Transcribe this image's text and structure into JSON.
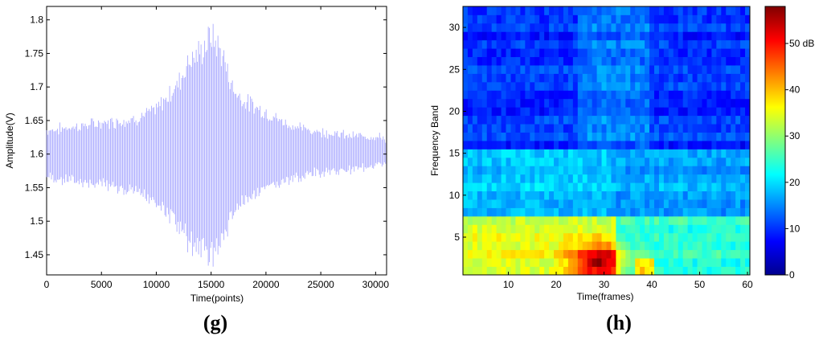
{
  "panels": {
    "g_label": "(g)",
    "h_label": "(h)"
  },
  "chart_data": [
    {
      "type": "line",
      "panel": "(g)",
      "xlabel": "Time(points)",
      "ylabel": "Amplitude(V)",
      "xlim": [
        0,
        31000
      ],
      "ylim": [
        1.42,
        1.82
      ],
      "xticks": [
        0,
        5000,
        10000,
        15000,
        20000,
        25000,
        30000
      ],
      "xtick_labels": [
        "0",
        "5000",
        "10000",
        "15000",
        "20000",
        "25000",
        "30000"
      ],
      "yticks": [
        1.45,
        1.5,
        1.55,
        1.6,
        1.65,
        1.7,
        1.75,
        1.8
      ],
      "ytick_labels": [
        "1.45",
        "1.5",
        "1.55",
        "1.6",
        "1.65",
        "1.7",
        "1.75",
        "1.8"
      ],
      "color": "#8080ff",
      "envelope": {
        "x": [
          0,
          2000,
          4000,
          6000,
          8000,
          10000,
          12000,
          13000,
          14000,
          15000,
          16000,
          17000,
          18000,
          20000,
          22000,
          24000,
          26000,
          28000,
          30000,
          31000
        ],
        "upper": [
          1.64,
          1.645,
          1.65,
          1.655,
          1.66,
          1.675,
          1.72,
          1.76,
          1.77,
          1.8,
          1.77,
          1.71,
          1.69,
          1.67,
          1.65,
          1.64,
          1.635,
          1.63,
          1.63,
          1.625
        ],
        "lower": [
          1.56,
          1.555,
          1.55,
          1.545,
          1.535,
          1.52,
          1.48,
          1.45,
          1.44,
          1.425,
          1.45,
          1.5,
          1.52,
          1.54,
          1.555,
          1.565,
          1.57,
          1.575,
          1.58,
          1.585
        ]
      }
    },
    {
      "type": "heatmap",
      "panel": "(h)",
      "xlabel": "Time(frames)",
      "ylabel": "Frequency Band",
      "xlim": [
        1,
        60
      ],
      "ylim": [
        1,
        32
      ],
      "xticks": [
        10,
        20,
        30,
        40,
        50,
        60
      ],
      "xtick_labels": [
        "10",
        "20",
        "30",
        "40",
        "50",
        "60"
      ],
      "yticks": [
        5,
        10,
        15,
        20,
        25,
        30
      ],
      "ytick_labels": [
        "5",
        "10",
        "15",
        "20",
        "25",
        "30"
      ],
      "colorbar": {
        "range": [
          0,
          58
        ],
        "ticks": [
          0,
          10,
          20,
          30,
          40,
          50
        ],
        "tick_labels": [
          "0",
          "10",
          "20",
          "30",
          "40",
          "50 dB"
        ],
        "colormap": "jet"
      },
      "grid": {
        "frames": 60,
        "bands": 32
      }
    }
  ]
}
